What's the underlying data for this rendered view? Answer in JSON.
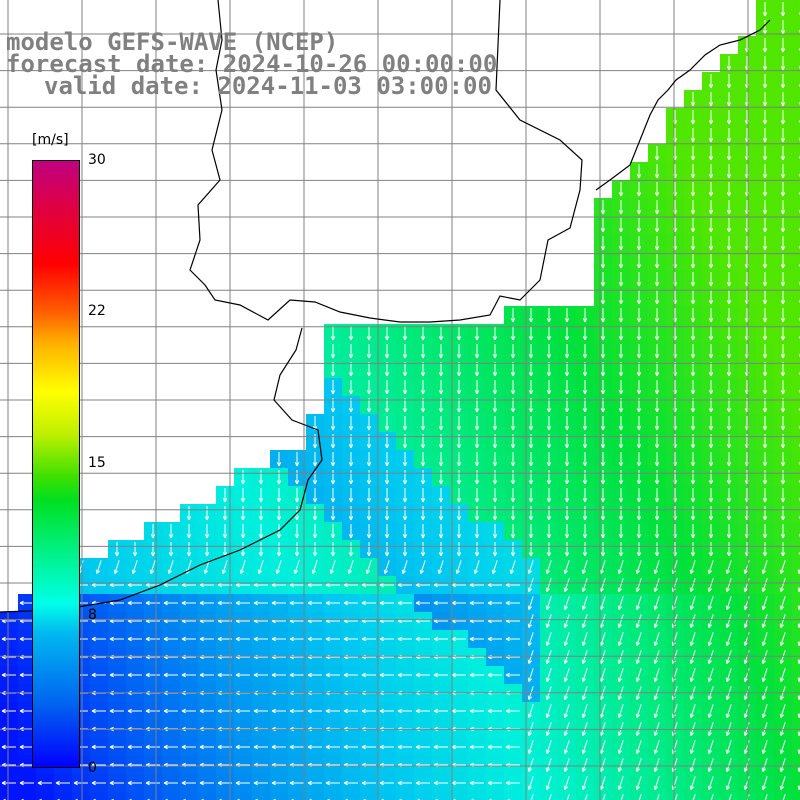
{
  "title": {
    "line1": "modelo GEFS-WAVE (NCEP)",
    "line2": "forecast date: 2024-10-26 00:00:00",
    "line3": "valid date: 2024-11-03 03:00:00"
  },
  "colorbar": {
    "unit": "[m/s]",
    "ticks": [
      "30",
      "22",
      "15",
      "8",
      "0"
    ],
    "tick_values": [
      30,
      22,
      15,
      8,
      0
    ],
    "min": 0,
    "max": 30
  },
  "colors": {
    "land": "#ffffff",
    "coastline": "#000000",
    "grid": "#808080",
    "arrows": "#ffffff",
    "title": "#808080"
  }
}
